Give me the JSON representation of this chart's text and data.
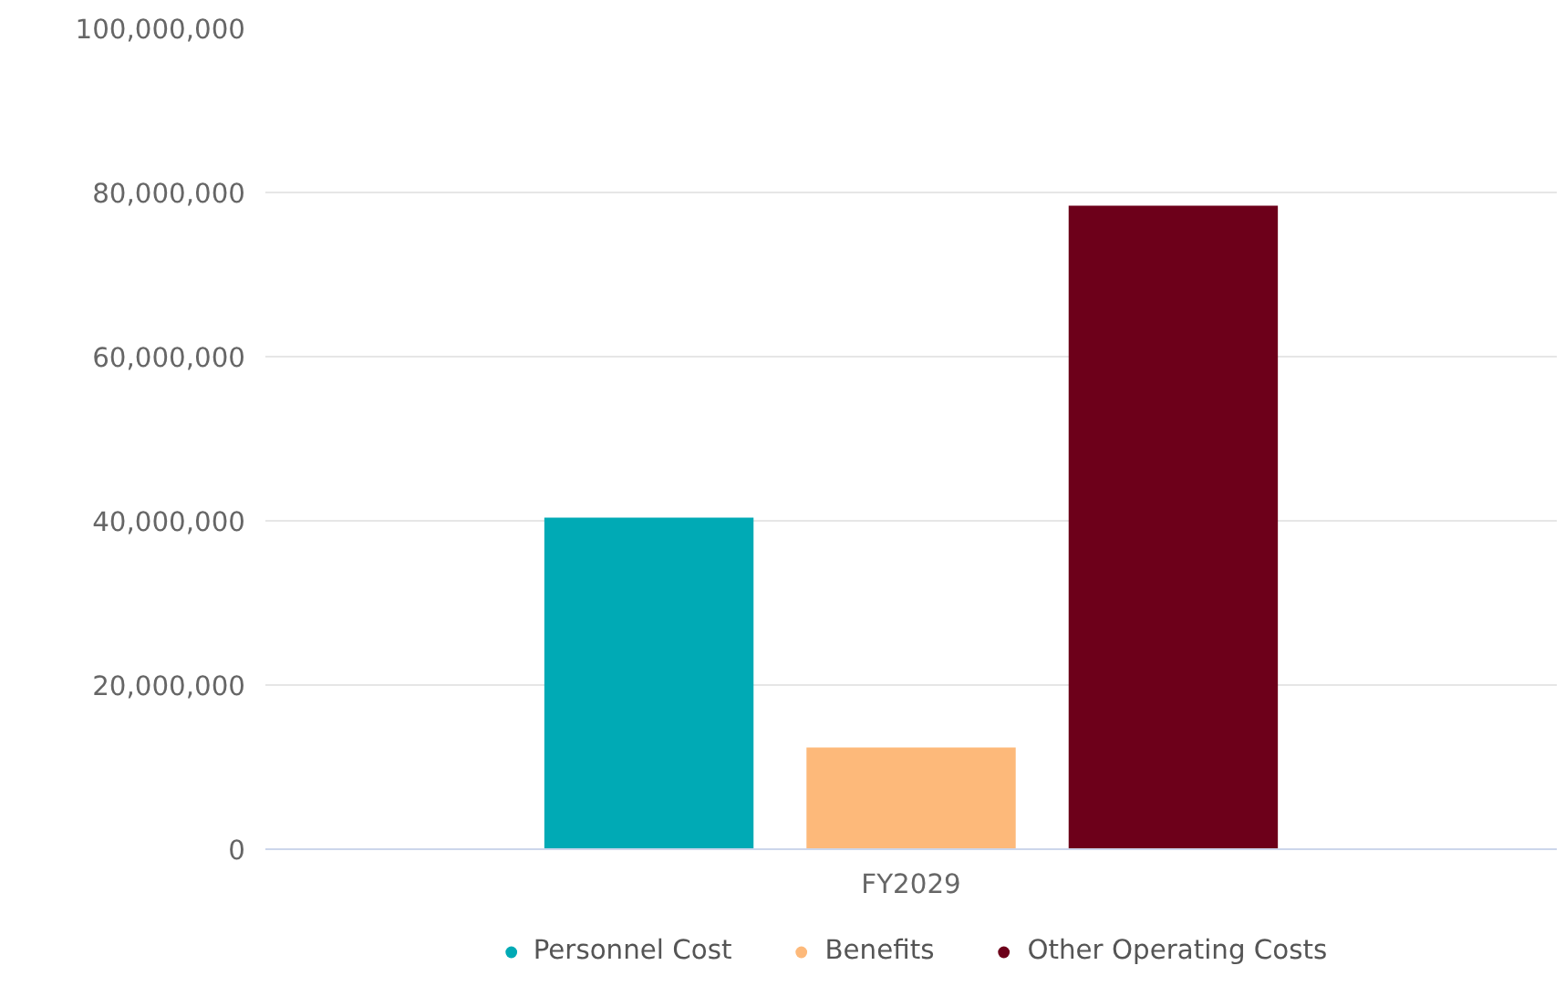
{
  "chart_data": {
    "type": "bar",
    "categories": [
      "FY2029"
    ],
    "series": [
      {
        "name": "Personnel Cost",
        "color": "#00aab5",
        "values": [
          40400000
        ]
      },
      {
        "name": "Benefits",
        "color": "#fdb97a",
        "values": [
          12400000
        ]
      },
      {
        "name": "Other Operating Costs",
        "color": "#6d001a",
        "values": [
          78400000
        ]
      }
    ],
    "ylim": [
      0,
      100000000
    ],
    "yticks": [
      {
        "value": 0,
        "label": "0"
      },
      {
        "value": 20000000,
        "label": "20,000,000"
      },
      {
        "value": 40000000,
        "label": "40,000,000"
      },
      {
        "value": 60000000,
        "label": "60,000,000"
      },
      {
        "value": 80000000,
        "label": "80,000,000"
      },
      {
        "value": 100000000,
        "label": "100,000,000"
      }
    ],
    "grid": "y",
    "legend": "bottom"
  }
}
